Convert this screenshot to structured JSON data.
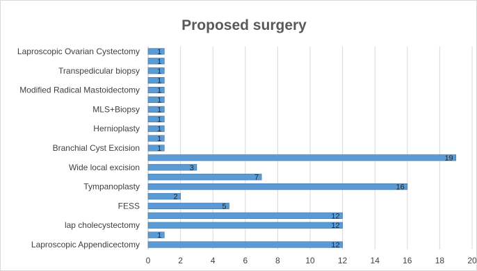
{
  "chart_data": {
    "type": "bar",
    "orientation": "horizontal",
    "title": "Proposed surgery",
    "xlabel": "",
    "ylabel": "",
    "xlim": [
      0,
      20
    ],
    "x_ticks": [
      0,
      2,
      4,
      6,
      8,
      10,
      12,
      14,
      16,
      18,
      20
    ],
    "grid": true,
    "legend": "none",
    "bar_color": "#5b9bd5",
    "categories": [
      "Laproscopic Ovarian Cystectomy",
      "",
      "Transpedicular biopsy",
      "",
      "Modified Radical Mastoidectomy",
      "",
      "MLS+Biopsy",
      "",
      "Hernioplasty",
      "",
      "Branchial Cyst Excision",
      "",
      "Wide local excision",
      "",
      "Tympanoplasty",
      "",
      "FESS",
      "",
      "lap cholecystectomy",
      "",
      "Laproscopic Appendicectomy"
    ],
    "values": [
      1,
      1,
      1,
      1,
      1,
      1,
      1,
      1,
      1,
      1,
      1,
      19,
      3,
      7,
      16,
      2,
      5,
      12,
      12,
      1,
      12
    ],
    "data_labels": [
      "1",
      "1",
      "1",
      "1",
      "1",
      "1",
      "1",
      "1",
      "1",
      "1",
      "1",
      "19",
      "3",
      "7",
      "16",
      "2",
      "5",
      "12",
      "12",
      "1",
      "12"
    ]
  }
}
